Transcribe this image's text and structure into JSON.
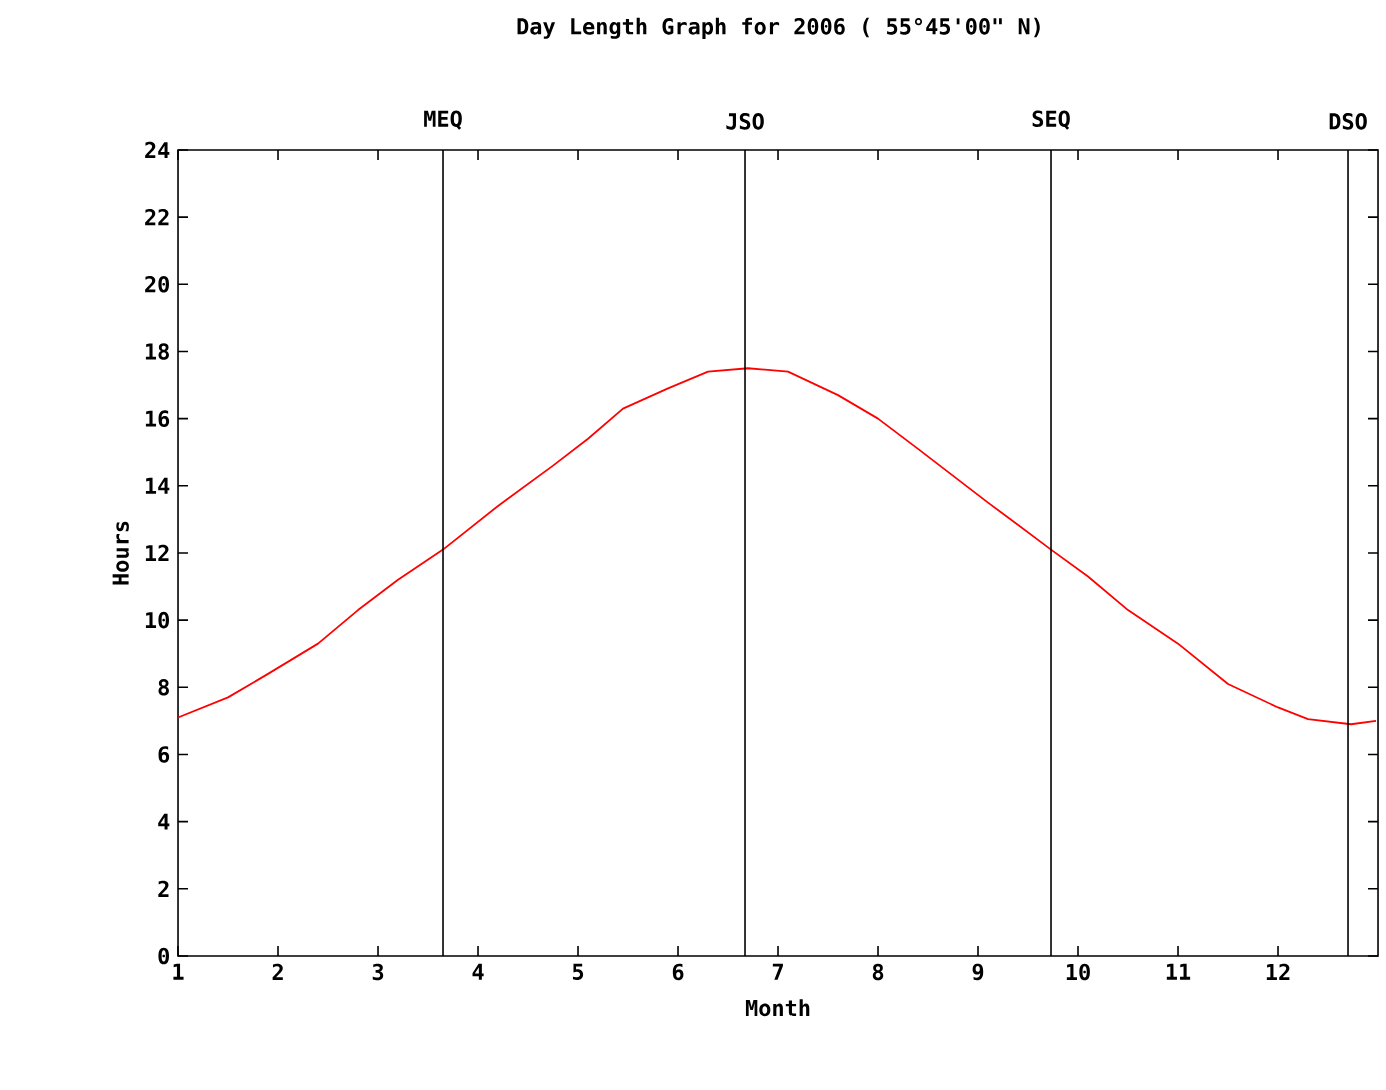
{
  "chart_data": {
    "type": "line",
    "title": "Day Length Graph for 2006 ( 55°45'00\" N)",
    "xlabel": "Month",
    "ylabel": "Hours",
    "x": [
      1.0,
      1.5,
      1.9,
      2.4,
      2.8,
      3.2,
      3.65,
      4.2,
      4.75,
      5.1,
      5.45,
      5.9,
      6.3,
      6.7,
      7.1,
      7.6,
      8.0,
      8.4,
      9.1,
      9.73,
      10.1,
      10.5,
      11.0,
      11.5,
      12.0,
      12.3,
      12.73,
      12.98
    ],
    "series": [
      {
        "color": "#ff0000",
        "values": [
          7.1,
          7.7,
          8.4,
          9.3,
          10.3,
          11.2,
          12.1,
          13.4,
          14.6,
          15.4,
          16.3,
          16.9,
          17.4,
          17.5,
          17.4,
          16.7,
          16.0,
          15.1,
          13.5,
          12.1,
          11.3,
          10.3,
          9.3,
          8.1,
          7.4,
          7.05,
          6.9,
          7.0
        ]
      }
    ],
    "xlim": [
      1,
      13
    ],
    "ylim": [
      0,
      24
    ],
    "xticks": [
      1,
      2,
      3,
      4,
      5,
      6,
      7,
      8,
      9,
      10,
      11,
      12
    ],
    "yticks": [
      0,
      2,
      4,
      6,
      8,
      10,
      12,
      14,
      16,
      18,
      20,
      22,
      24
    ],
    "ref_lines": [
      {
        "axis": "x",
        "value": 3.65,
        "label": "MEQ",
        "color": "#000000"
      },
      {
        "axis": "x",
        "value": 6.67,
        "label": "JSO",
        "color": "#000000"
      },
      {
        "axis": "x",
        "value": 9.73,
        "label": "SEQ",
        "color": "#000000"
      },
      {
        "axis": "x",
        "value": 12.7,
        "label": "DSO",
        "color": "#000000"
      }
    ],
    "grid": false,
    "marker": "none",
    "line_style": "solid"
  }
}
